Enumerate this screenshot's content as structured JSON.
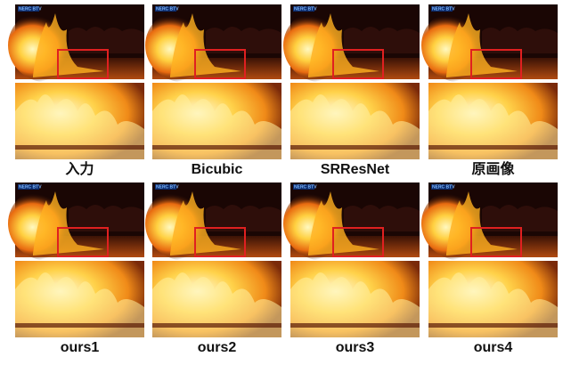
{
  "panels": [
    {
      "label": "入力",
      "watermark": "NERC BTV"
    },
    {
      "label": "Bicubic",
      "watermark": "NERC BTV"
    },
    {
      "label": "SRResNet",
      "watermark": "NERC BTV"
    },
    {
      "label": "原画像",
      "watermark": "NERC BTV"
    },
    {
      "label": "ours1",
      "watermark": "NERC BTV"
    },
    {
      "label": "ours2",
      "watermark": "NERC BTV"
    },
    {
      "label": "ours3",
      "watermark": "NERC BTV"
    },
    {
      "label": "ours4",
      "watermark": "NERC BTV"
    }
  ]
}
